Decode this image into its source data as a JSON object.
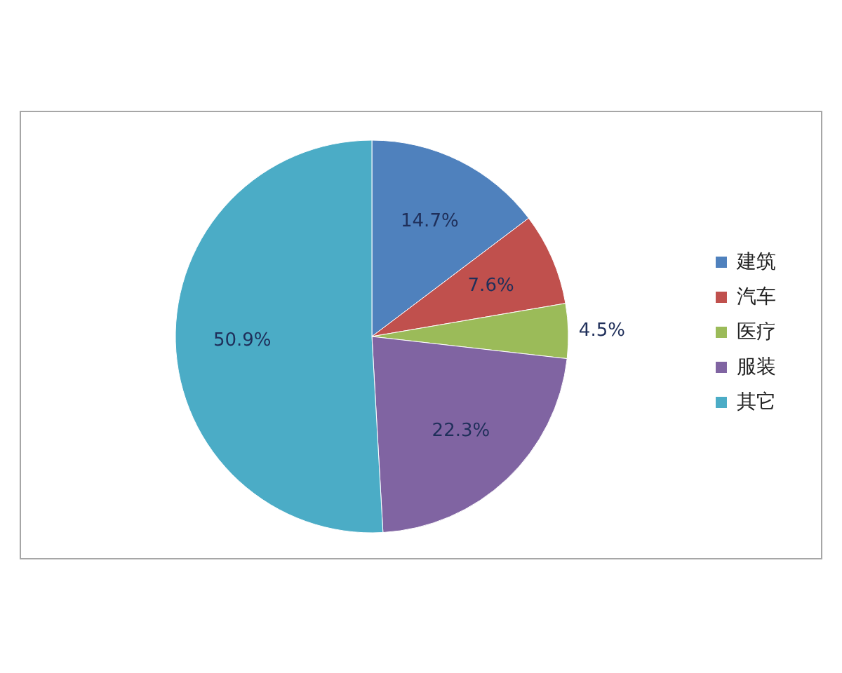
{
  "chart_data": {
    "type": "pie",
    "categories": [
      "建筑",
      "汽车",
      "医疗",
      "服装",
      "其它"
    ],
    "values": [
      14.7,
      7.6,
      4.5,
      22.3,
      50.9
    ],
    "colors": [
      "#4f81bd",
      "#c0504d",
      "#9bbb59",
      "#8064a2",
      "#4bacc6"
    ],
    "value_labels": [
      "14.7%",
      "7.6%",
      "4.5%",
      "22.3%",
      "50.9%"
    ],
    "legend": "right"
  }
}
